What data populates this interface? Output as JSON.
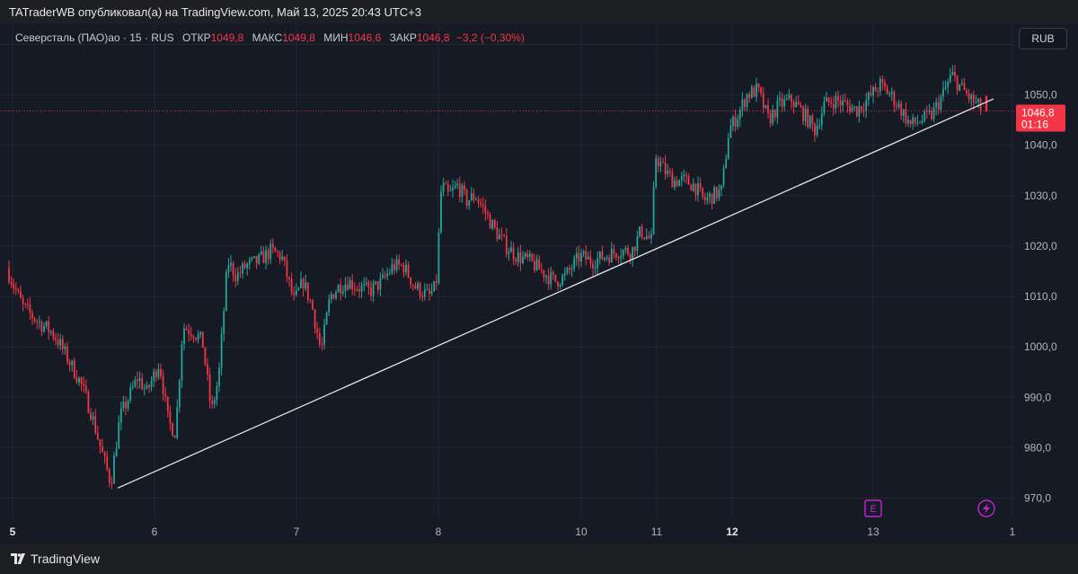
{
  "header": {
    "publisher_line": "TATraderWB опубликовал(а) на TradingView.com, Май 13, 2025 20:43 UTC+3"
  },
  "legend": {
    "symbol": "Северсталь (ПАО)ао · 15 · RUS",
    "open_label": "ОТКР",
    "open_value": "1049,8",
    "high_label": "МАКС",
    "high_value": "1049,8",
    "low_label": "МИН",
    "low_value": "1046,6",
    "close_label": "ЗАКР",
    "close_value": "1046,8",
    "change": "−3,2 (−0,30%)"
  },
  "currency_button": "RUB",
  "price_tag": {
    "value": "1046,8",
    "countdown": "01:16"
  },
  "footer": {
    "brand": "TradingView"
  },
  "colors": {
    "up": "#26a69a",
    "down": "#f23645",
    "background": "#161a25",
    "trendline": "#e0e3eb",
    "marker_purple": "#c026d3"
  },
  "markers": {
    "earnings_label": "E"
  },
  "chart_data": {
    "type": "candlestick",
    "y_axis": {
      "ylim": [
        966,
        1064
      ],
      "ticks": [
        970,
        980,
        990,
        1000,
        1010,
        1020,
        1030,
        1040,
        1050,
        1060
      ],
      "tick_labels": [
        "970,0",
        "980,0",
        "990,0",
        "1000,0",
        "1010,0",
        "1020,0",
        "1030,0",
        "1040,0",
        "1050,0",
        "1060,0"
      ]
    },
    "x_axis": {
      "tick_labels": [
        "5",
        "6",
        "7",
        "8",
        "10",
        "11",
        "12",
        "13",
        "1"
      ],
      "bold_labels": [
        "5",
        "12"
      ]
    },
    "price_path": [
      [
        0,
        1026
      ],
      [
        7,
        1017
      ],
      [
        16,
        1013
      ],
      [
        28,
        1008
      ],
      [
        45,
        1005
      ],
      [
        60,
        1003
      ],
      [
        68,
        1001
      ],
      [
        80,
        997
      ],
      [
        92,
        993
      ],
      [
        104,
        987
      ],
      [
        116,
        979
      ],
      [
        126,
        973
      ],
      [
        136,
        986
      ],
      [
        146,
        990
      ],
      [
        156,
        994
      ],
      [
        166,
        991
      ],
      [
        180,
        997
      ],
      [
        190,
        985
      ],
      [
        198,
        983
      ],
      [
        206,
        1004
      ],
      [
        218,
        1003
      ],
      [
        228,
        1001
      ],
      [
        238,
        987
      ],
      [
        246,
        994
      ],
      [
        256,
        1017
      ],
      [
        266,
        1014
      ],
      [
        276,
        1016
      ],
      [
        290,
        1017
      ],
      [
        304,
        1019
      ],
      [
        316,
        1018
      ],
      [
        330,
        1009
      ],
      [
        340,
        1013
      ],
      [
        350,
        1008
      ],
      [
        360,
        999
      ],
      [
        370,
        1010
      ],
      [
        380,
        1012
      ],
      [
        390,
        1013
      ],
      [
        400,
        1012
      ],
      [
        414,
        1011
      ],
      [
        428,
        1013
      ],
      [
        440,
        1016
      ],
      [
        452,
        1016
      ],
      [
        464,
        1012
      ],
      [
        480,
        1010
      ],
      [
        488,
        1012
      ],
      [
        494,
        1032
      ],
      [
        502,
        1030
      ],
      [
        512,
        1032
      ],
      [
        522,
        1029
      ],
      [
        532,
        1030
      ],
      [
        542,
        1027
      ],
      [
        554,
        1023
      ],
      [
        566,
        1020
      ],
      [
        578,
        1018
      ],
      [
        592,
        1017
      ],
      [
        606,
        1015
      ],
      [
        620,
        1013
      ],
      [
        632,
        1014
      ],
      [
        648,
        1018
      ],
      [
        662,
        1017
      ],
      [
        676,
        1018
      ],
      [
        690,
        1019
      ],
      [
        706,
        1019
      ],
      [
        716,
        1023
      ],
      [
        728,
        1021
      ],
      [
        732,
        1038
      ],
      [
        742,
        1035
      ],
      [
        752,
        1033
      ],
      [
        764,
        1033
      ],
      [
        776,
        1032
      ],
      [
        786,
        1029
      ],
      [
        796,
        1030
      ],
      [
        806,
        1031
      ],
      [
        814,
        1043
      ],
      [
        824,
        1046
      ],
      [
        834,
        1050
      ],
      [
        846,
        1051
      ],
      [
        858,
        1045
      ],
      [
        870,
        1048
      ],
      [
        884,
        1049
      ],
      [
        898,
        1046
      ],
      [
        910,
        1043
      ],
      [
        920,
        1048
      ],
      [
        932,
        1049
      ],
      [
        944,
        1048
      ],
      [
        956,
        1047
      ],
      [
        968,
        1049
      ],
      [
        982,
        1052
      ],
      [
        994,
        1050
      ],
      [
        1006,
        1047
      ],
      [
        1016,
        1044
      ],
      [
        1028,
        1045
      ],
      [
        1040,
        1046
      ],
      [
        1052,
        1050
      ],
      [
        1062,
        1054
      ],
      [
        1074,
        1051
      ],
      [
        1084,
        1049
      ],
      [
        1096,
        1047
      ]
    ],
    "last_candle": {
      "open": 1049.8,
      "high": 1049.8,
      "low": 1046.6,
      "close": 1046.8
    },
    "current_price": 1046.8,
    "trendline": {
      "from_price": 972,
      "to_price": 1049.2
    }
  }
}
